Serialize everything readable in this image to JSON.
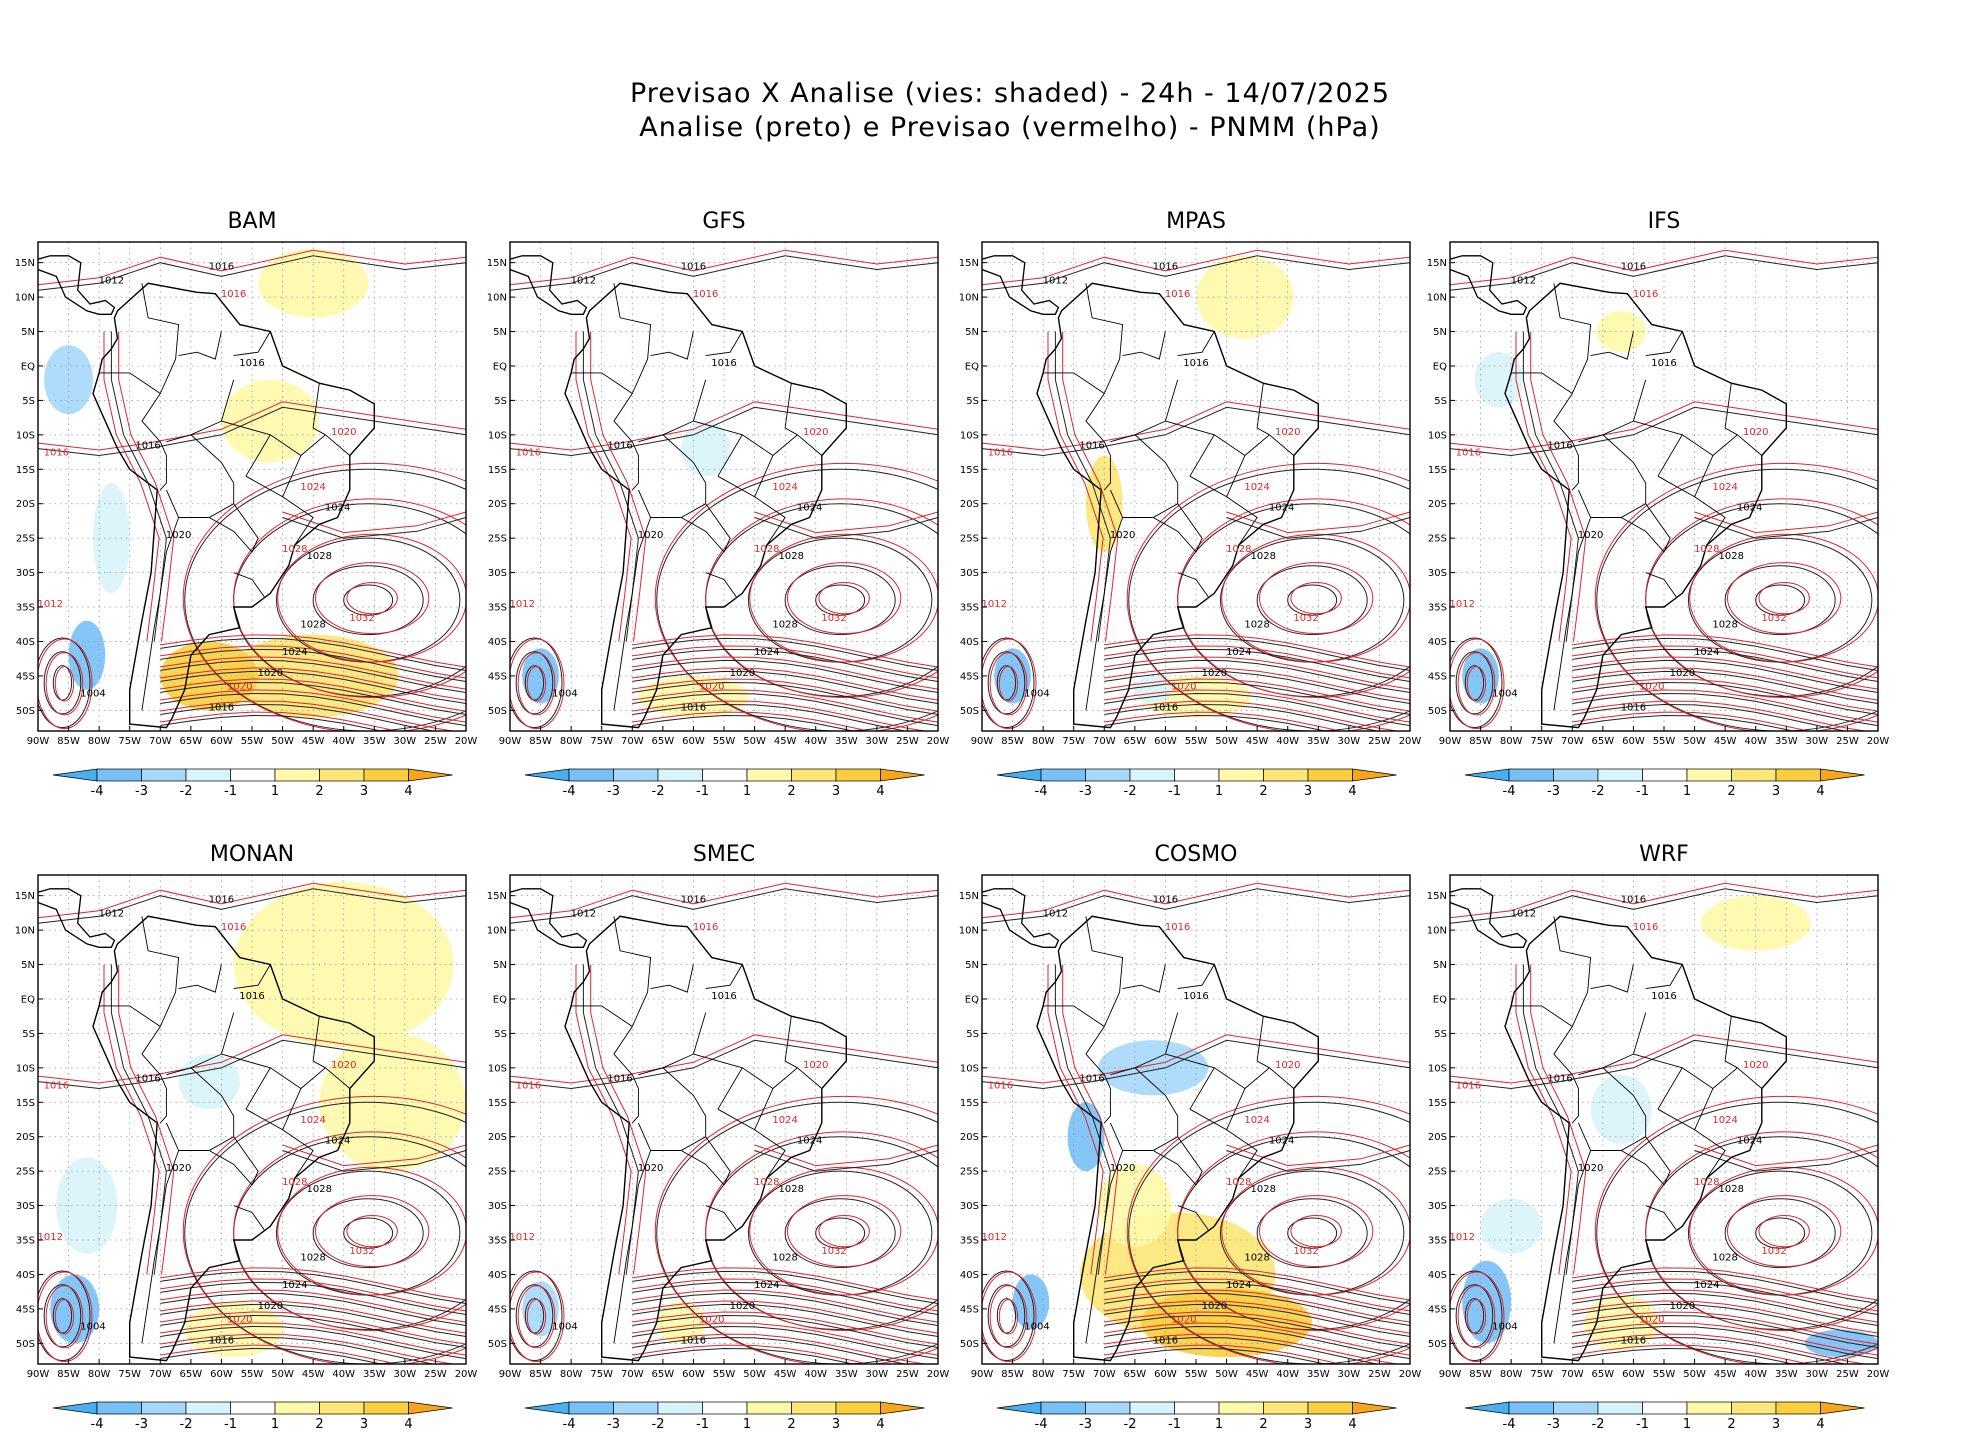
{
  "header": {
    "title_line1": "Previsao X Analise (vies: shaded) - 24h - 14/07/2025",
    "title_line2": "Analise (preto) e Previsao (vermelho) - PNMM (hPa)"
  },
  "models": [
    "BAM",
    "GFS",
    "MPAS",
    "IFS",
    "MONAN",
    "SMEC",
    "COSMO",
    "WRF"
  ],
  "lat_labels": [
    "15N",
    "10N",
    "5N",
    "EQ",
    "5S",
    "10S",
    "15S",
    "20S",
    "25S",
    "30S",
    "35S",
    "40S",
    "45S",
    "50S"
  ],
  "lon_labels": [
    "90W",
    "85W",
    "80W",
    "75W",
    "70W",
    "65W",
    "60W",
    "55W",
    "50W",
    "45W",
    "40W",
    "35W",
    "30W",
    "25W",
    "20W"
  ],
  "colorbar": {
    "labels": [
      "-4",
      "-3",
      "-2",
      "-1",
      "1",
      "2",
      "3",
      "4"
    ],
    "colors": [
      "#48b0f0",
      "#78c0f8",
      "#a6d8fa",
      "#d8f4fb",
      "#ffffff",
      "#fffaaa",
      "#fde776",
      "#f9cf40",
      "#f7a61c"
    ]
  },
  "analysis_labels": [
    {
      "text": "1012",
      "lon": -78,
      "lat": 12
    },
    {
      "text": "1016",
      "lon": -60,
      "lat": 14
    },
    {
      "text": "1016",
      "lon": -55,
      "lat": 0
    },
    {
      "text": "1016",
      "lon": -72,
      "lat": -12
    },
    {
      "text": "1020",
      "lon": -67,
      "lat": -25
    },
    {
      "text": "1024",
      "lon": -41,
      "lat": -21
    },
    {
      "text": "1028",
      "lon": -44,
      "lat": -28
    },
    {
      "text": "1028",
      "lon": -45,
      "lat": -38
    },
    {
      "text": "1024",
      "lon": -48,
      "lat": -42
    },
    {
      "text": "1020",
      "lon": -52,
      "lat": -45
    },
    {
      "text": "1016",
      "lon": -60,
      "lat": -50
    },
    {
      "text": "1004",
      "lon": -81,
      "lat": -48
    }
  ],
  "forecast_labels": [
    {
      "text": "1016",
      "lon": -58,
      "lat": 10
    },
    {
      "text": "1016",
      "lon": -87,
      "lat": -13
    },
    {
      "text": "1020",
      "lon": -40,
      "lat": -10
    },
    {
      "text": "1024",
      "lon": -45,
      "lat": -18
    },
    {
      "text": "1028",
      "lon": -48,
      "lat": -27
    },
    {
      "text": "1032",
      "lon": -37,
      "lat": -37
    },
    {
      "text": "1020",
      "lon": -57,
      "lat": -47
    },
    {
      "text": "1012",
      "lon": -88,
      "lat": -35
    }
  ]
}
